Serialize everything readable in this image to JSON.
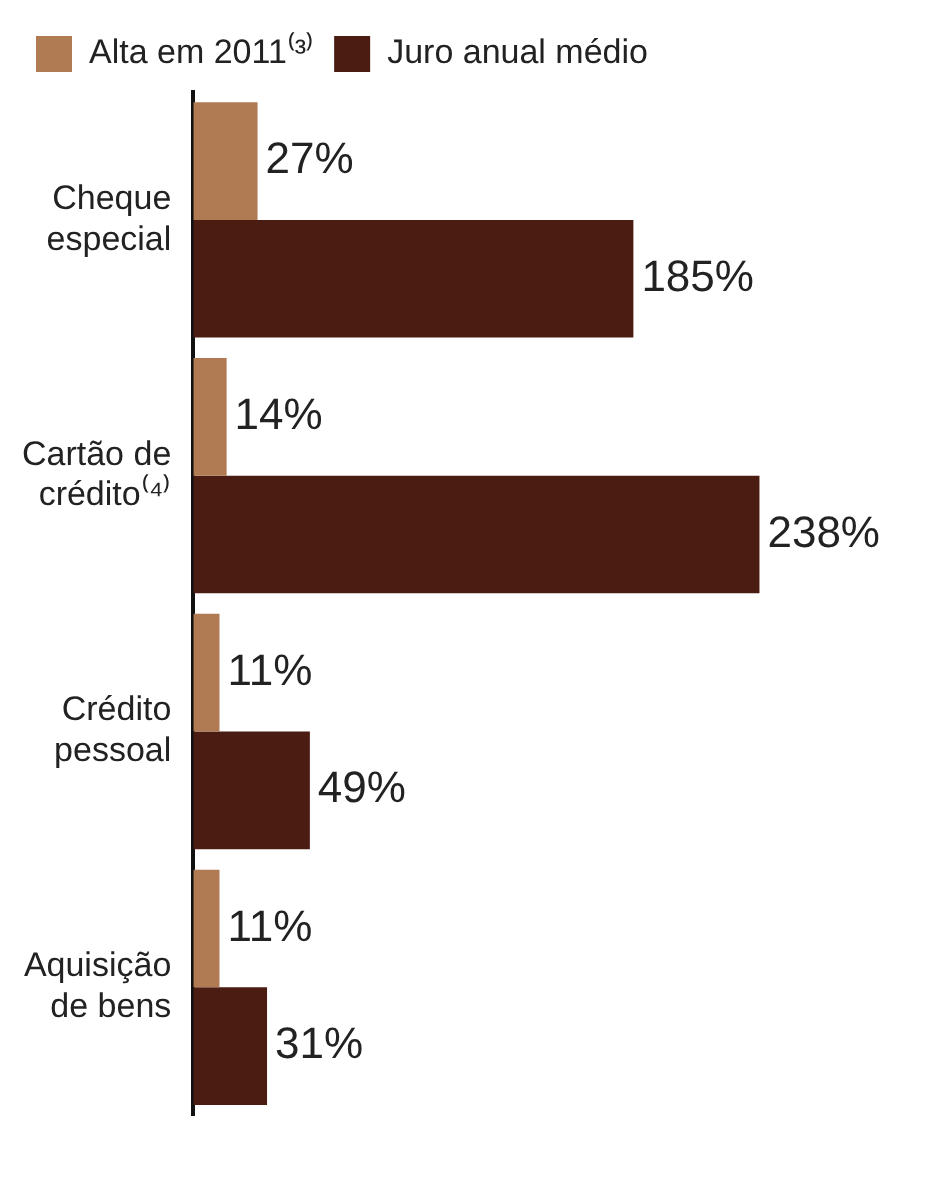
{
  "chart_data": {
    "type": "bar",
    "orientation": "horizontal",
    "categories": [
      "Cheque especial",
      "Cartão de crédito⁽⁴⁾",
      "Crédito pessoal",
      "Aquisição de bens"
    ],
    "series": [
      {
        "name": "Alta em 2011⁽³⁾",
        "color": "#b07a52",
        "values": [
          27,
          14,
          11,
          11
        ],
        "value_labels": [
          "27%",
          "14%",
          "11%",
          "11%"
        ]
      },
      {
        "name": "Juro anual médio",
        "color": "#4a1c12",
        "values": [
          185,
          238,
          49,
          31
        ],
        "value_labels": [
          "185%",
          "238%",
          "49%",
          "31%"
        ]
      }
    ],
    "legend": "top left"
  }
}
